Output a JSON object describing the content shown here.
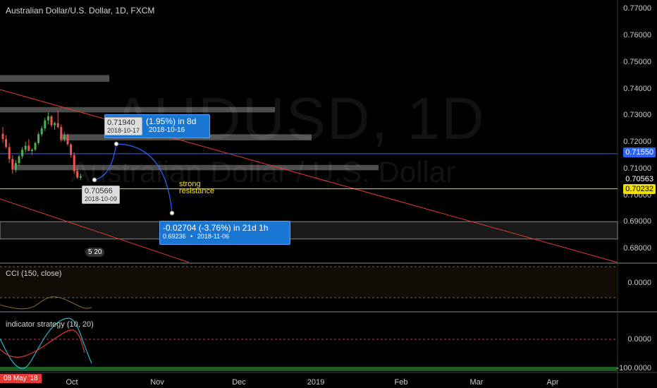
{
  "header": {
    "title": "Australian Dollar/U.S. Dollar, 1D, FXCM"
  },
  "watermark": {
    "symbol": "AUDUSD, 1D",
    "name": "Australian Dollar / U.S. Dollar"
  },
  "price_axis": {
    "labels": [
      "0.77000",
      "0.76000",
      "0.75000",
      "0.74000",
      "0.73000",
      "0.72000",
      "0.71000",
      "0.70000",
      "0.69000",
      "0.68000"
    ],
    "tag_blue": "0.71550",
    "tag_dark": "0.70563",
    "tag_yellow": "0.70232"
  },
  "annotations": {
    "up_measure": "(1.95%) in 8d",
    "up_date": "2018-10-16",
    "high_price": "0.71940",
    "high_date": "2018-10-17",
    "low_price": "0.70566",
    "low_date": "2018-10-09",
    "down_measure": "-0.02704 (-3.76%) in 21d 1h",
    "down_price": "0.69236",
    "down_date": "2018-11-06",
    "resistance_line1": "strong",
    "resistance_line2": "resistance",
    "badge": "5 20"
  },
  "cci_pane": {
    "label": "CCI (150, close)",
    "zero": "0.0000"
  },
  "strategy_pane": {
    "label": "indicator strategy (10, 20)",
    "zero": "0.0000",
    "min": "-100.0000"
  },
  "time_axis": {
    "labels": [
      "Oct",
      "Nov",
      "Dec",
      "2019",
      "Feb",
      "Mar",
      "Apr"
    ],
    "cursor_date": "08 May '18"
  },
  "colors": {
    "background": "#000000",
    "bull": "#4caf50",
    "bear": "#ef5350",
    "accent_blue": "#2962ff",
    "yellow": "#f2e100",
    "red_line": "#e53935"
  },
  "chart_data": {
    "type": "candlestick",
    "title": "Australian Dollar/U.S. Dollar, 1D, FXCM",
    "ylim": [
      0.675,
      0.772
    ],
    "ohlc": [
      [
        0.723,
        0.7255,
        0.7195,
        0.721
      ],
      [
        0.721,
        0.7225,
        0.7175,
        0.718
      ],
      [
        0.718,
        0.7195,
        0.712,
        0.7135
      ],
      [
        0.7135,
        0.715,
        0.708,
        0.7095
      ],
      [
        0.7095,
        0.713,
        0.7085,
        0.712
      ],
      [
        0.712,
        0.715,
        0.711,
        0.7145
      ],
      [
        0.7145,
        0.718,
        0.7135,
        0.717
      ],
      [
        0.717,
        0.72,
        0.716,
        0.7185
      ],
      [
        0.7185,
        0.721,
        0.717,
        0.7165
      ],
      [
        0.7165,
        0.7175,
        0.715,
        0.717
      ],
      [
        0.717,
        0.72,
        0.7165,
        0.7195
      ],
      [
        0.7195,
        0.7235,
        0.719,
        0.7228
      ],
      [
        0.7228,
        0.726,
        0.722,
        0.725
      ],
      [
        0.725,
        0.729,
        0.724,
        0.728
      ],
      [
        0.728,
        0.731,
        0.7265,
        0.7295
      ],
      [
        0.7295,
        0.73,
        0.7255,
        0.7262
      ],
      [
        0.7262,
        0.7275,
        0.7245,
        0.727
      ],
      [
        0.727,
        0.7318,
        0.725,
        0.7255
      ],
      [
        0.7255,
        0.7265,
        0.72,
        0.721
      ],
      [
        0.721,
        0.7235,
        0.72,
        0.7225
      ],
      [
        0.7225,
        0.723,
        0.7185,
        0.719
      ],
      [
        0.719,
        0.7195,
        0.714,
        0.715
      ],
      [
        0.715,
        0.716,
        0.708,
        0.709
      ],
      [
        0.709,
        0.71,
        0.706,
        0.7065
      ],
      [
        0.7065,
        0.708,
        0.7057,
        0.707
      ]
    ],
    "horizontal_levels": [
      0.7155,
      0.70232
    ],
    "zones": [
      [
        0.69,
        0.6835
      ],
      [
        0.7113,
        0.7093
      ],
      [
        0.7228,
        0.7205
      ],
      [
        0.733,
        0.731
      ],
      [
        0.745,
        0.7425
      ]
    ]
  }
}
